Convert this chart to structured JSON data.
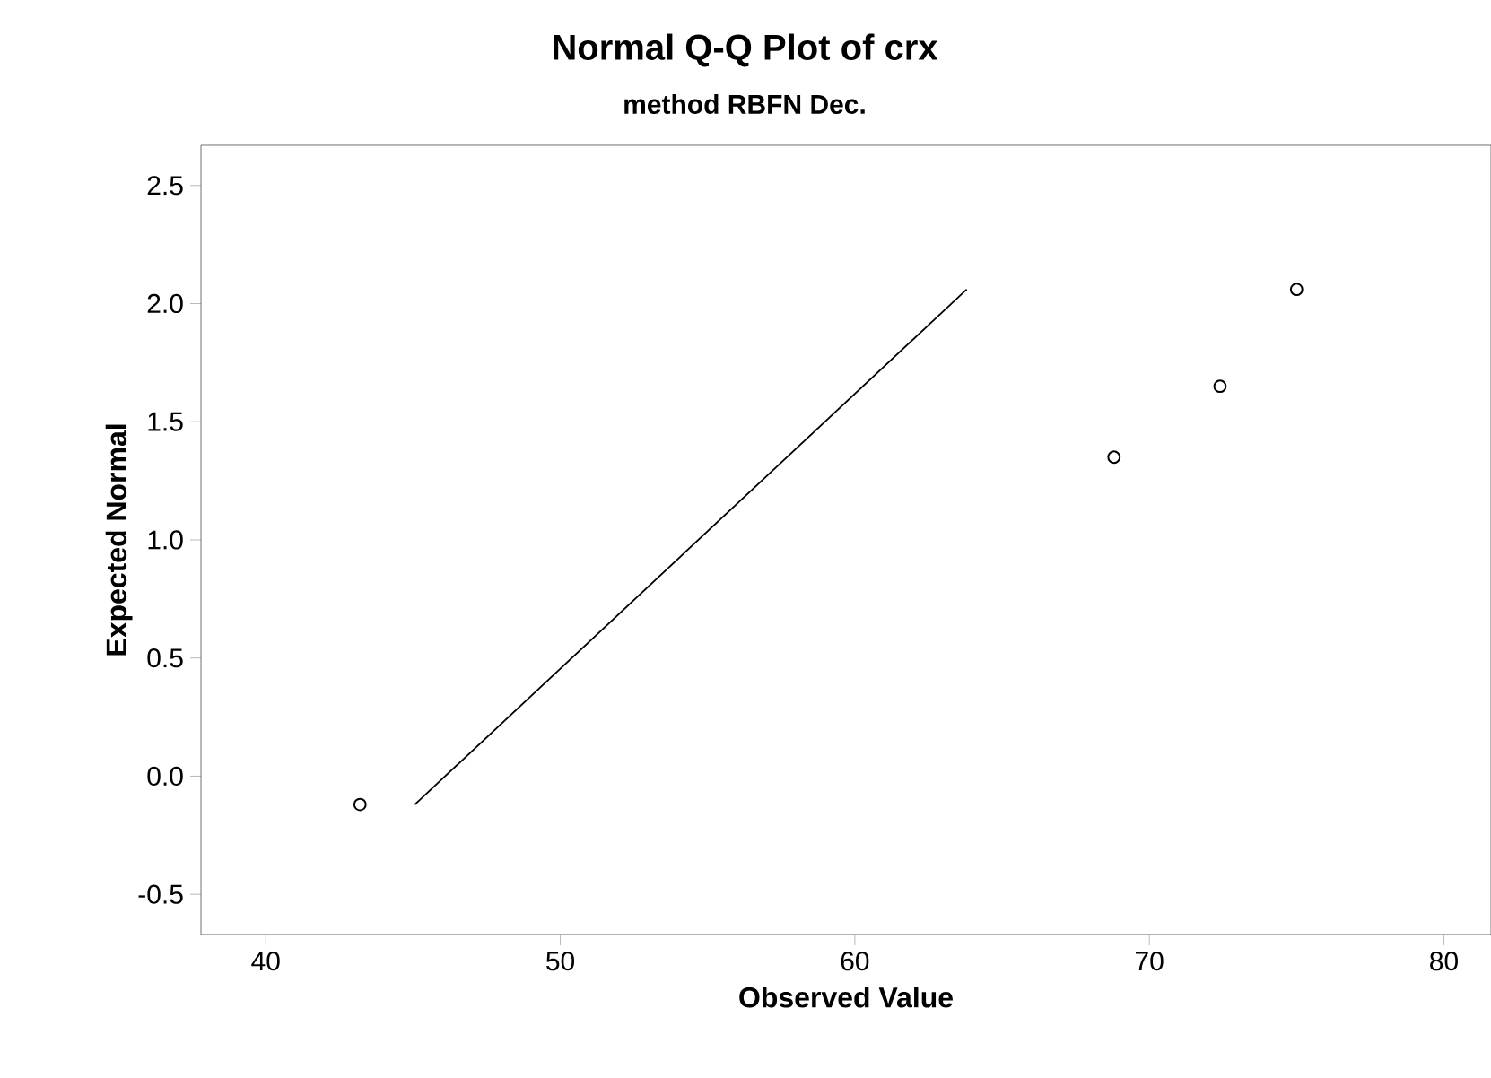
{
  "chart_data": {
    "type": "scatter",
    "title": "Normal Q-Q Plot of crx",
    "subtitle": "method RBFN Dec.",
    "xlabel": "Observed Value",
    "ylabel": "Expected Normal",
    "xlim": [
      37.8,
      81.6
    ],
    "ylim": [
      -0.67,
      2.67
    ],
    "xticks": [
      40,
      50,
      60,
      70,
      80
    ],
    "yticks": [
      -0.5,
      {
        "value": 0,
        "label": "0.0"
      },
      0.5,
      {
        "value": 1,
        "label": "1.0"
      },
      1.5,
      {
        "value": 2,
        "label": "2.0"
      },
      2.5
    ],
    "grid": false,
    "marker": "circle",
    "series": [
      {
        "color": "#000000",
        "x": [
          43.2,
          68.8,
          72.4,
          75.0
        ],
        "values": [
          -0.12,
          1.35,
          1.65,
          2.06
        ]
      },
      {
        "type": "line",
        "color": "#000000",
        "marker": "none",
        "x": [
          45.06,
          63.8
        ],
        "values": [
          -0.12,
          2.06
        ]
      }
    ]
  }
}
